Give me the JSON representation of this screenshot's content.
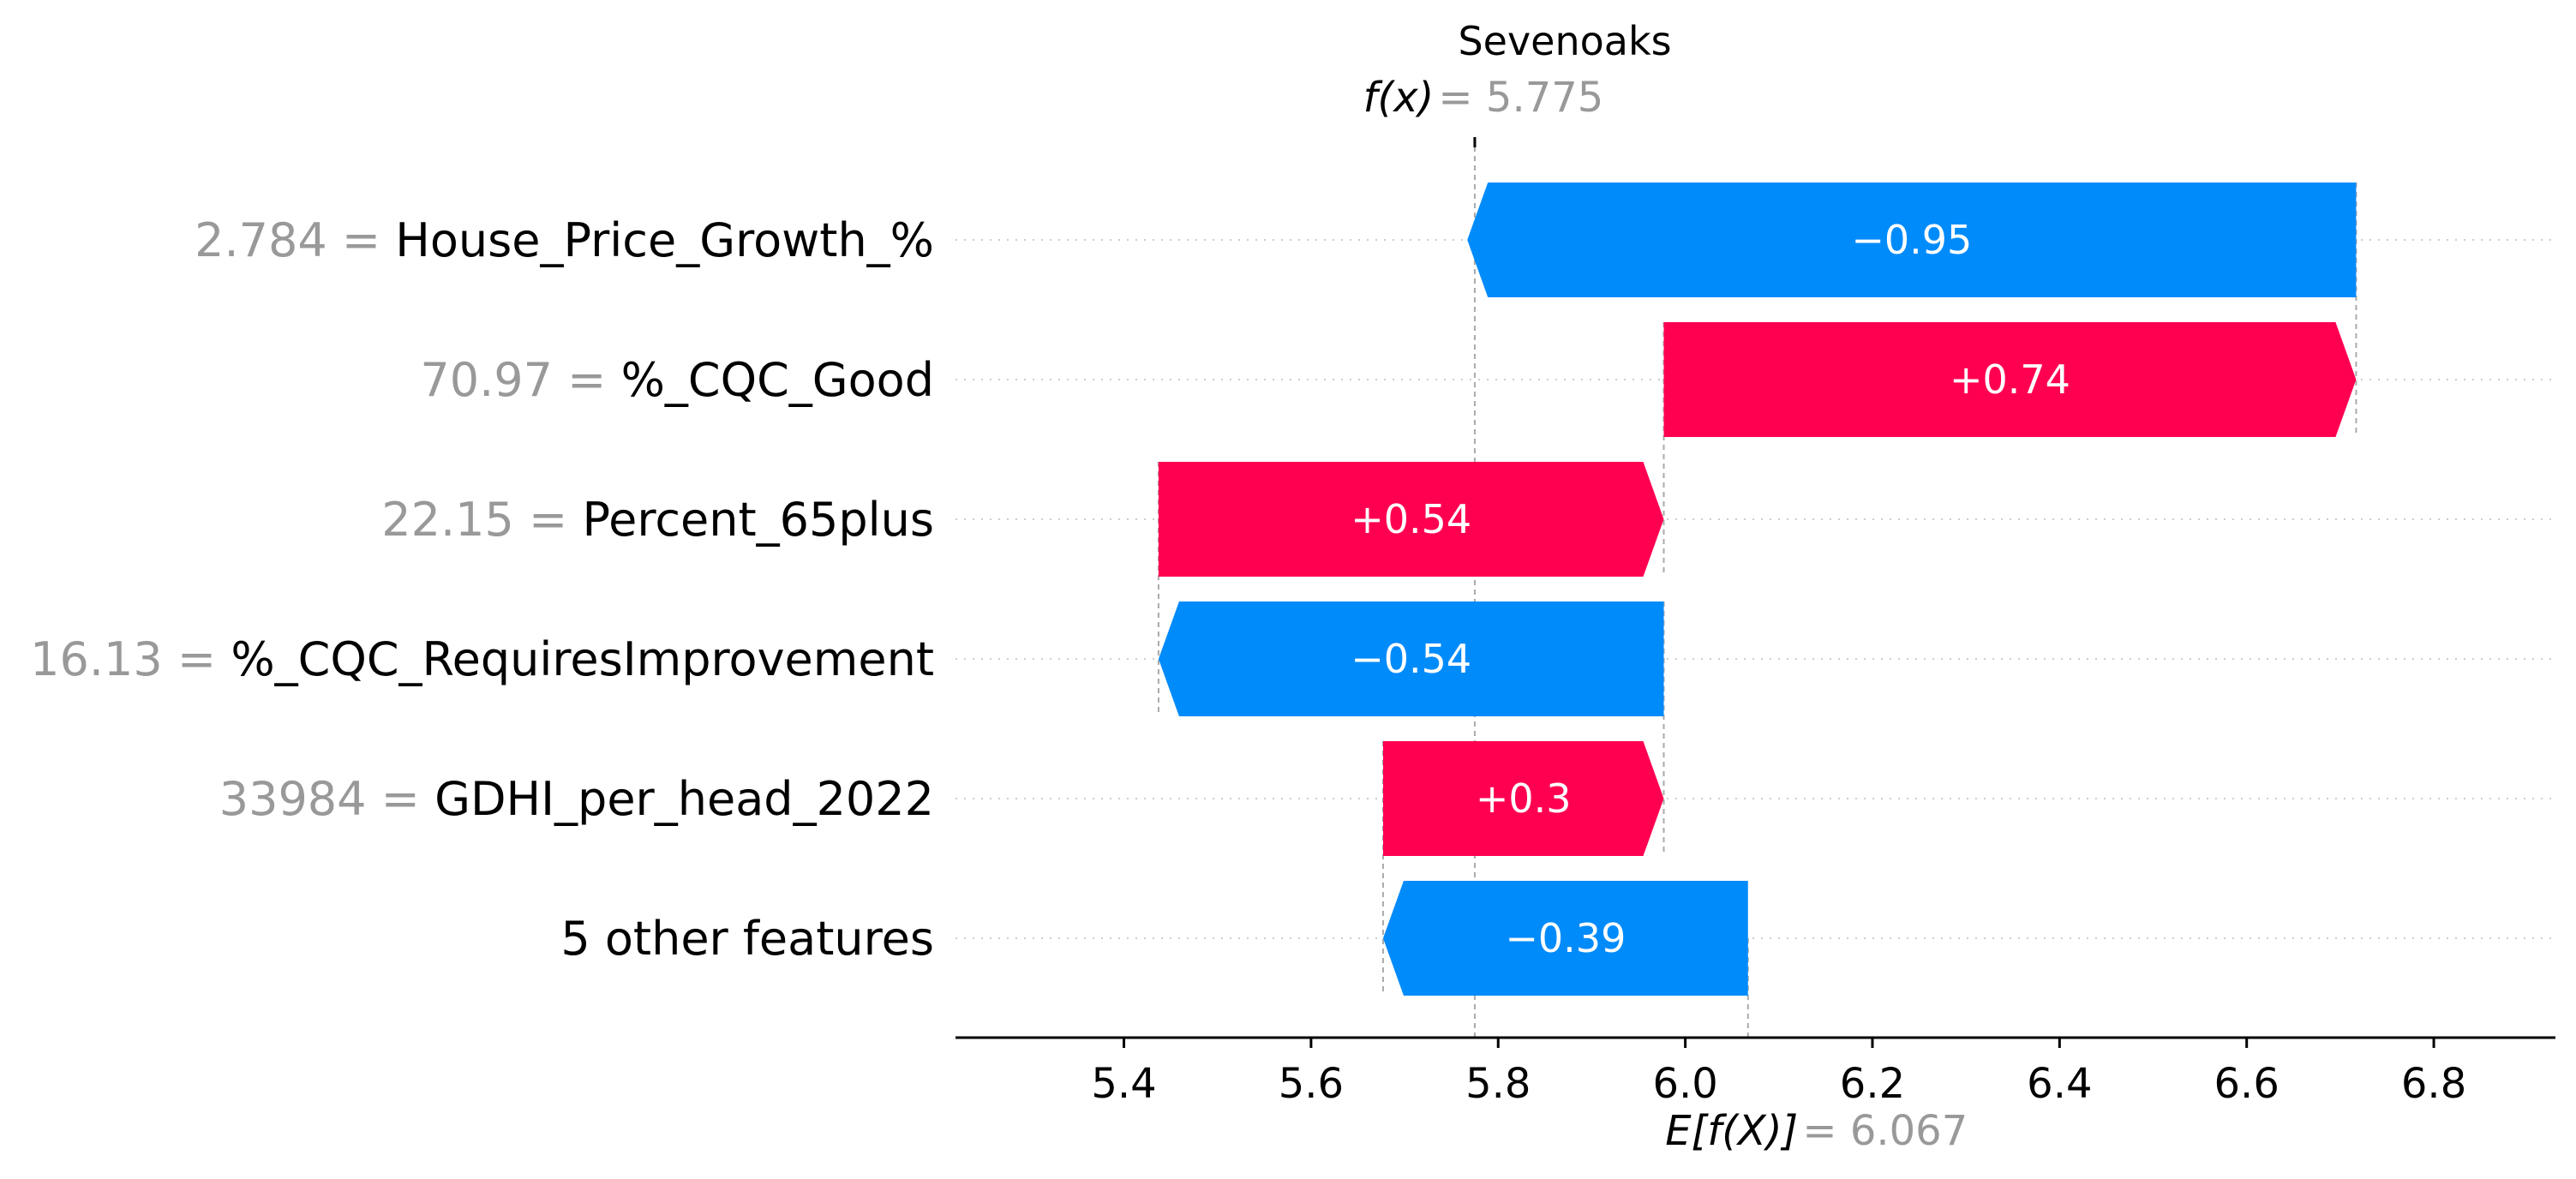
{
  "chart_data": {
    "type": "waterfall",
    "title": "Sevenoaks",
    "fx_label": "f(x)",
    "fx_value": "5.775",
    "fx": 5.775,
    "ex_label": "E[f(X)]",
    "ex_value": "6.067",
    "base_value": 6.067,
    "xlim": [
      5.22,
      6.93
    ],
    "xticks": [
      5.4,
      5.6,
      5.8,
      6.0,
      6.2,
      6.4,
      6.6,
      6.8
    ],
    "xtick_labels": [
      "5.4",
      "5.6",
      "5.8",
      "6.0",
      "6.2",
      "6.4",
      "6.6",
      "6.8"
    ],
    "colors": {
      "positive": "#ff0051",
      "negative": "#008bfb",
      "feature_value": "#999999",
      "gridline": "#cccccc"
    },
    "features": [
      {
        "value": "2.784",
        "name": "House_Price_Growth_%",
        "contribution": -0.95,
        "label": "−0.95"
      },
      {
        "value": "70.97",
        "name": "%_CQC_Good",
        "contribution": 0.74,
        "label": "+0.74"
      },
      {
        "value": "22.15",
        "name": "Percent_65plus",
        "contribution": 0.54,
        "label": "+0.54"
      },
      {
        "value": "16.13",
        "name": "%_CQC_RequiresImprovement",
        "contribution": -0.54,
        "label": "−0.54"
      },
      {
        "value": "33984",
        "name": "GDHI_per_head_2022",
        "contribution": 0.3,
        "label": "+0.3"
      },
      {
        "value": "",
        "name": "5 other features",
        "contribution": -0.39,
        "label": "−0.39"
      }
    ]
  }
}
